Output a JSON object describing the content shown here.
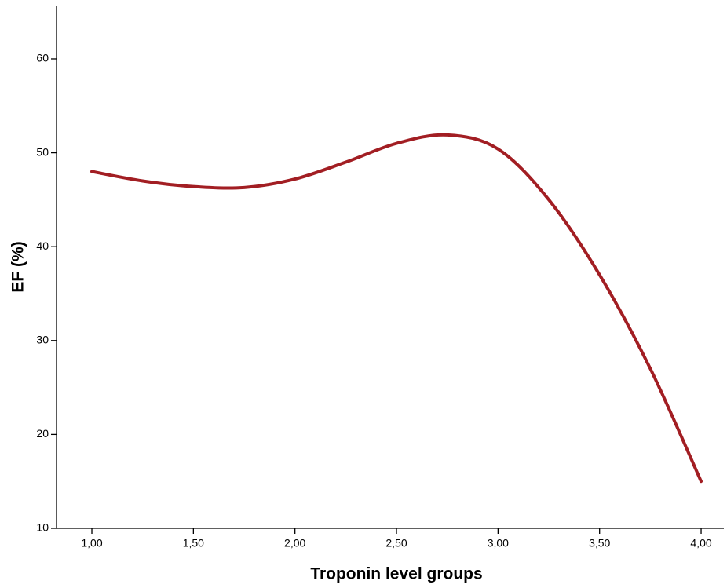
{
  "chart_data": {
    "type": "line",
    "x_label": "Troponin level groups",
    "y_label": "EF (%)",
    "x": [
      1.0,
      1.25,
      1.5,
      1.75,
      2.0,
      2.25,
      2.5,
      2.75,
      3.0,
      3.25,
      3.5,
      3.75,
      4.0
    ],
    "series": [
      {
        "name": "EF",
        "color": "#a21e23",
        "values": [
          48.0,
          47.0,
          46.4,
          46.3,
          47.2,
          49.0,
          51.0,
          51.9,
          50.4,
          45.0,
          37.0,
          27.0,
          15.0
        ]
      }
    ],
    "xlim": [
      0.826,
      4.112
    ],
    "ylim": [
      10,
      65.6
    ],
    "xticks": [
      {
        "value": 1.0,
        "label": "1,00"
      },
      {
        "value": 1.5,
        "label": "1,50"
      },
      {
        "value": 2.0,
        "label": "2,00"
      },
      {
        "value": 2.5,
        "label": "2,50"
      },
      {
        "value": 3.0,
        "label": "3,00"
      },
      {
        "value": 3.5,
        "label": "3,50"
      },
      {
        "value": 4.0,
        "label": "4,00"
      }
    ],
    "yticks": [
      10,
      20,
      30,
      40,
      50,
      60
    ]
  }
}
